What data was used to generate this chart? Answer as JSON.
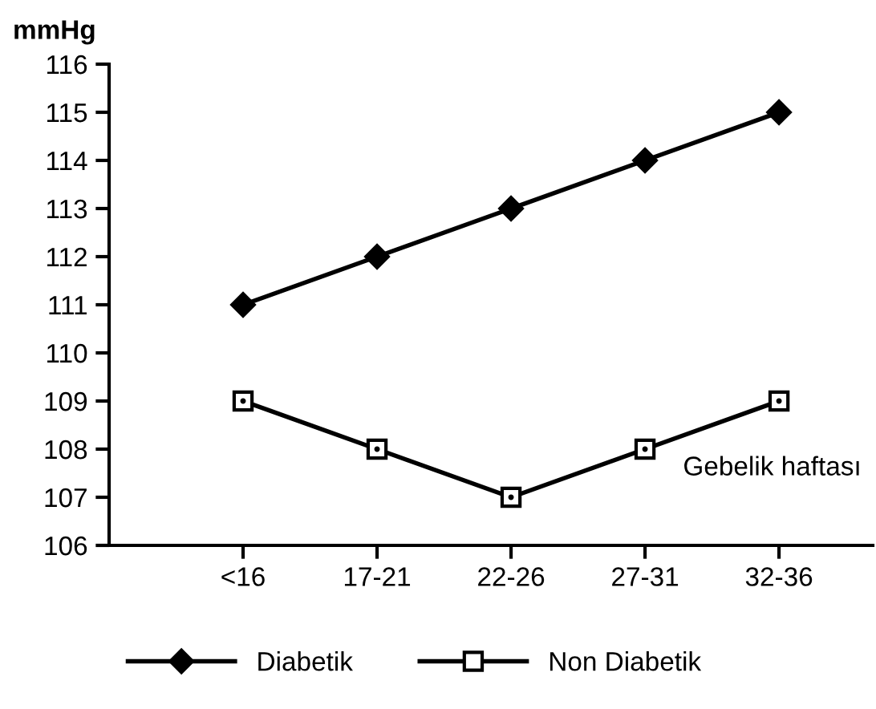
{
  "chart_data": {
    "type": "line",
    "ylabel": "mmHg",
    "categories": [
      "<16",
      "17-21",
      "22-26",
      "27-31",
      "32-36"
    ],
    "series": [
      {
        "name": "Diabetik",
        "color": "#000000",
        "marker": "diamond",
        "values": [
          111,
          112,
          113,
          114,
          115
        ]
      },
      {
        "name": "Non Diabetik",
        "color": "#000000",
        "marker": "square",
        "values": [
          109,
          108,
          107,
          108,
          109
        ]
      }
    ],
    "ylim": [
      106,
      116
    ],
    "yticks": [
      106,
      107,
      108,
      109,
      110,
      111,
      112,
      113,
      114,
      115,
      116
    ],
    "annotations": [
      "Gebelik haftası"
    ],
    "legend": "bottom",
    "grid": false,
    "line_style": "solid"
  }
}
